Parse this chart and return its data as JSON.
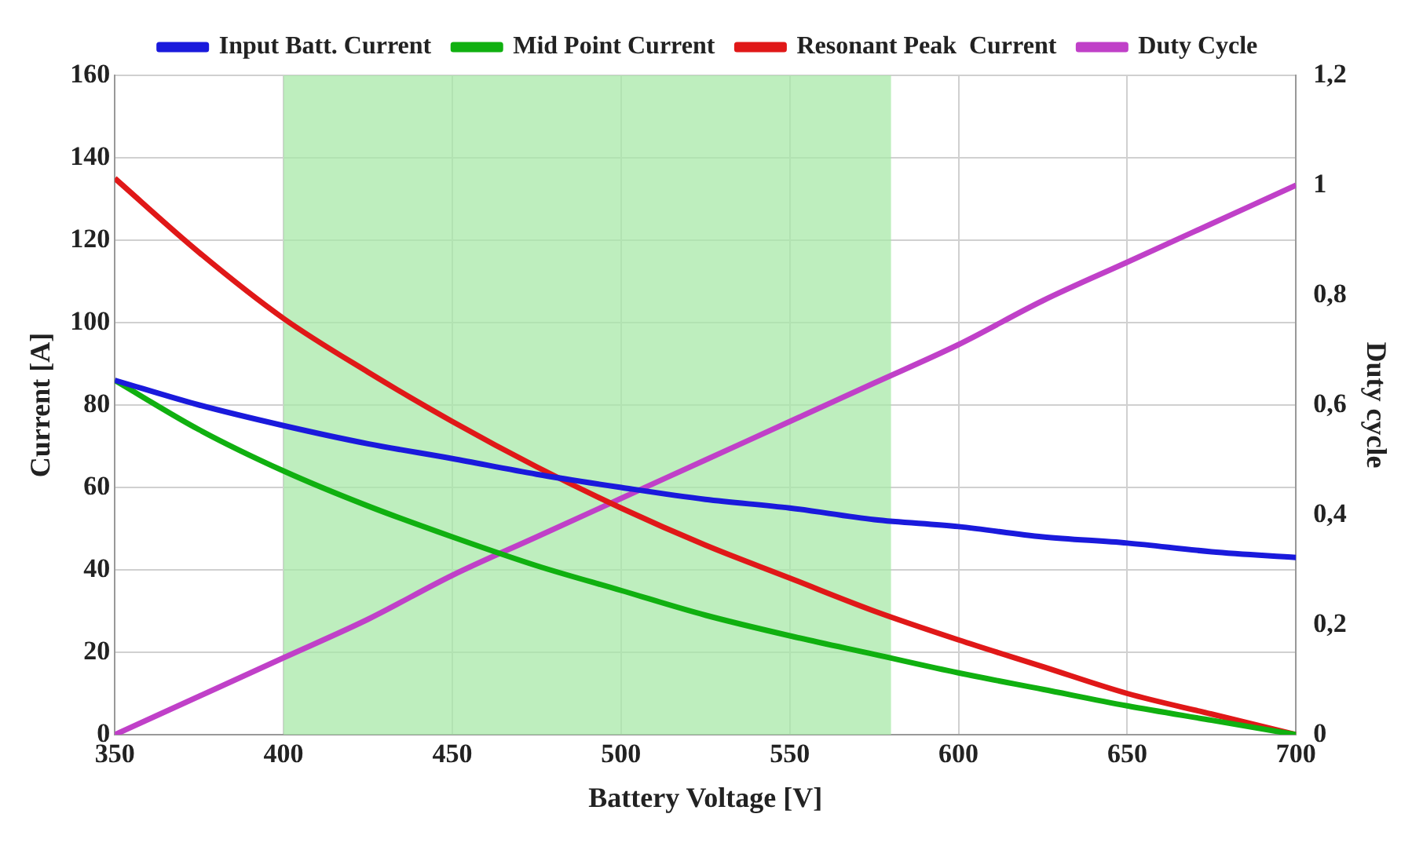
{
  "chart_data": {
    "type": "line",
    "xlabel": "Battery Voltage [V]",
    "ylabel": "Current [A]",
    "y2label": "Duty cycle",
    "x": [
      350,
      375,
      400,
      425,
      450,
      475,
      500,
      525,
      550,
      575,
      600,
      625,
      650,
      675,
      700
    ],
    "series": [
      {
        "name": "Input Batt. Current",
        "color": "#1a1adc",
        "values": [
          86,
          80,
          75,
          70.6,
          67,
          63.2,
          60,
          57.1,
          55,
          52.2,
          50.5,
          48,
          46.5,
          44.4,
          43
        ]
      },
      {
        "name": "Mid Point Current",
        "color": "#10b010",
        "values": [
          86,
          74,
          64,
          55.5,
          48,
          41,
          35,
          29,
          24,
          19.5,
          15,
          11,
          7,
          3.5,
          0
        ]
      },
      {
        "name": "Resonant Peak  Current",
        "color": "#e01818",
        "values": [
          135,
          117,
          101,
          88,
          76,
          65,
          55,
          46,
          38,
          30,
          23,
          16.5,
          10,
          5,
          0
        ]
      },
      {
        "name": "Duty Cycle",
        "color": "#c040c8",
        "axis": "y2",
        "values": [
          0,
          0.07,
          0.14,
          0.21,
          0.29,
          0.36,
          0.43,
          0.5,
          0.57,
          0.64,
          0.71,
          0.79,
          0.86,
          0.93,
          1
        ]
      }
    ],
    "xlim": [
      350,
      700
    ],
    "xticks": [
      350,
      400,
      450,
      500,
      550,
      600,
      650,
      700
    ],
    "ylim": [
      0,
      160
    ],
    "yticks": [
      0,
      20,
      40,
      60,
      80,
      100,
      120,
      140,
      160
    ],
    "y2lim": [
      0,
      1.2
    ],
    "y2ticks": [
      0,
      {
        "value": 0.2,
        "label": "0,2"
      },
      {
        "value": 0.4,
        "label": "0,4"
      },
      {
        "value": 0.6,
        "label": "0,6"
      },
      {
        "value": 0.8,
        "label": "0,8"
      },
      1,
      {
        "value": 1.2,
        "label": "1,2"
      }
    ],
    "bands": [
      {
        "axis": "x",
        "from": 400,
        "to": 580,
        "color": "#a8e8a8"
      }
    ],
    "grid": true,
    "legend": "top",
    "marker": "none",
    "line_style": "solid"
  }
}
